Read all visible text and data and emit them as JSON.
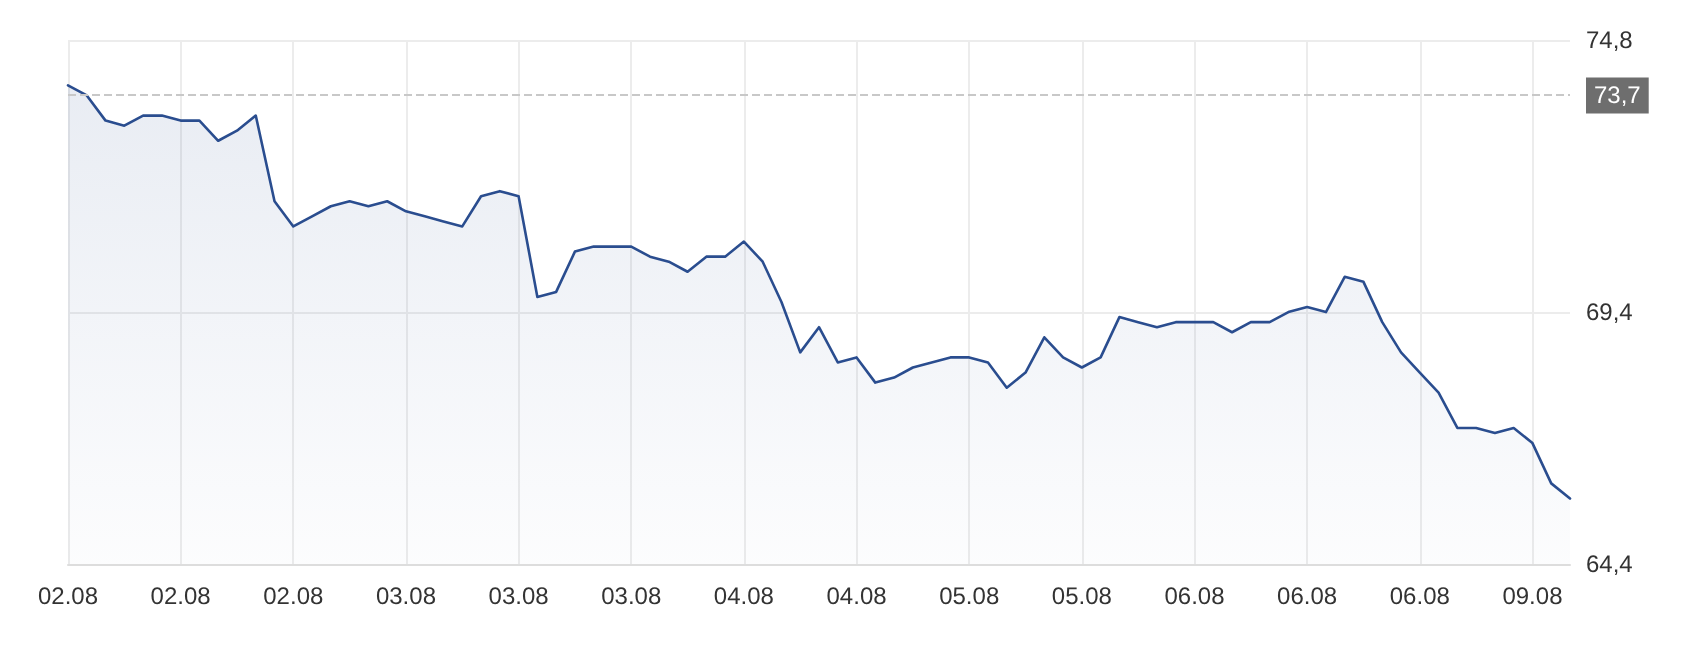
{
  "chart_data": {
    "type": "area",
    "categories": [
      "02.08",
      null,
      null,
      null,
      null,
      null,
      "02.08",
      null,
      null,
      null,
      null,
      null,
      "02.08",
      null,
      null,
      null,
      null,
      null,
      "03.08",
      null,
      null,
      null,
      null,
      null,
      "03.08",
      null,
      null,
      null,
      null,
      null,
      "03.08",
      null,
      null,
      null,
      null,
      null,
      "04.08",
      null,
      null,
      null,
      null,
      null,
      "04.08",
      null,
      null,
      null,
      null,
      null,
      "05.08",
      null,
      null,
      null,
      null,
      null,
      "05.08",
      null,
      null,
      null,
      null,
      null,
      "06.08",
      null,
      null,
      null,
      null,
      null,
      "06.08",
      null,
      null,
      null,
      null,
      null,
      "06.08",
      null,
      null,
      null,
      null,
      null,
      "09.08",
      null,
      null
    ],
    "series": [
      {
        "color": "#2a4d8f",
        "values": [
          73.9,
          73.7,
          73.2,
          73.1,
          73.3,
          73.3,
          73.2,
          73.2,
          72.8,
          73.0,
          73.3,
          71.6,
          71.1,
          71.3,
          71.5,
          71.6,
          71.5,
          71.6,
          71.4,
          71.3,
          71.2,
          71.1,
          71.7,
          71.8,
          71.7,
          69.7,
          69.8,
          70.6,
          70.7,
          70.7,
          70.7,
          70.5,
          70.4,
          70.2,
          70.5,
          70.5,
          70.8,
          70.4,
          69.6,
          68.6,
          69.1,
          68.4,
          68.5,
          68.0,
          68.1,
          68.3,
          68.4,
          68.5,
          68.5,
          68.4,
          67.9,
          68.2,
          68.9,
          68.5,
          68.3,
          68.5,
          69.3,
          69.2,
          69.1,
          69.2,
          69.2,
          69.2,
          69.0,
          69.2,
          69.2,
          69.4,
          69.5,
          69.4,
          70.1,
          70.0,
          69.2,
          68.6,
          68.2,
          67.8,
          67.1,
          67.1,
          67.0,
          67.1,
          66.8,
          66.0,
          65.7
        ]
      }
    ],
    "ylim": [
      64.4,
      74.8
    ],
    "yticks": [
      {
        "value": 64.4,
        "label": "64,4"
      },
      {
        "value": 69.4,
        "label": "69,4"
      },
      {
        "value": 74.8,
        "label": "74,8"
      }
    ],
    "ref_lines": [
      {
        "axis": "y",
        "value": 73.7,
        "label": "73,7",
        "color": "#c8c8c8",
        "line_style": "dashed"
      }
    ],
    "grid": true,
    "marker": "none",
    "line_style": "solid"
  }
}
